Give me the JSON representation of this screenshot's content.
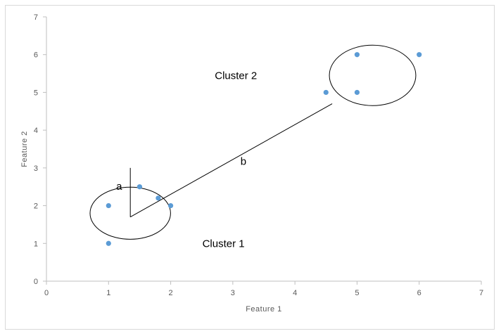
{
  "chart_data": {
    "type": "scatter",
    "xlabel": "Feature 1",
    "ylabel": "Feature 2",
    "xlim": [
      0,
      7
    ],
    "ylim": [
      0,
      7
    ],
    "x_ticks": [
      "0",
      "1",
      "2",
      "3",
      "4",
      "5",
      "6",
      "7"
    ],
    "y_ticks": [
      "0",
      "1",
      "2",
      "3",
      "4",
      "5",
      "6",
      "7"
    ],
    "grid": false,
    "point_color": "#5b9bd5",
    "series": [
      {
        "points": [
          {
            "x": 1,
            "y": 1
          },
          {
            "x": 1,
            "y": 2
          },
          {
            "x": 1.5,
            "y": 2.5
          },
          {
            "x": 1.8,
            "y": 2.2
          },
          {
            "x": 2,
            "y": 2
          }
        ]
      },
      {
        "points": [
          {
            "x": 4.5,
            "y": 5
          },
          {
            "x": 5,
            "y": 5
          },
          {
            "x": 5,
            "y": 6
          },
          {
            "x": 6,
            "y": 6
          }
        ]
      }
    ],
    "annotations": {
      "cluster1_label": "Cluster 1",
      "cluster2_label": "Cluster 2",
      "radius_label": "a",
      "distance_label": "b",
      "cluster1_circle": {
        "cx": 1.35,
        "cy": 1.8,
        "r": 0.6
      },
      "cluster2_circle": {
        "cx": 5.25,
        "cy": 5.45,
        "r": 0.8
      },
      "radius_segment": {
        "x1": 1.35,
        "y1": 1.7,
        "x2": 1.35,
        "y2": 3.0
      },
      "distance_segment": {
        "x1": 1.35,
        "y1": 1.7,
        "x2": 4.6,
        "y2": 4.7
      }
    }
  }
}
